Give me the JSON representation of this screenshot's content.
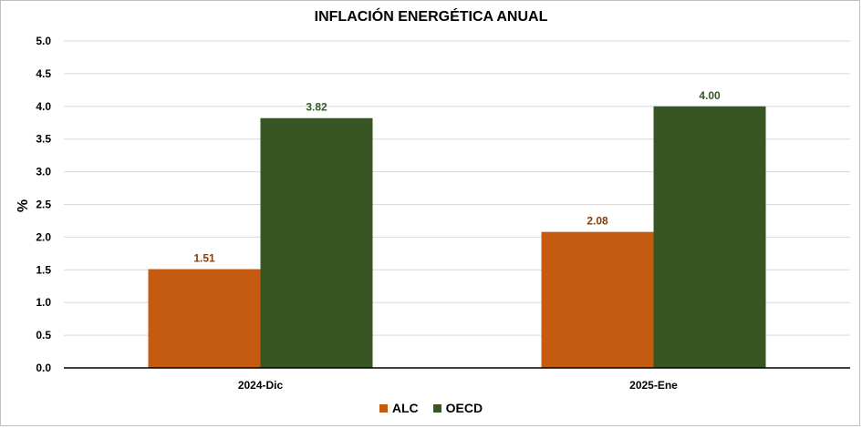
{
  "chart_data": {
    "type": "bar",
    "title": "INFLACIÓN ENERGÉTICA ANUAL",
    "ylabel": "%",
    "xlabel": "",
    "categories": [
      "2024-Dic",
      "2025-Ene"
    ],
    "series": [
      {
        "name": "ALC",
        "values": [
          1.51,
          2.08
        ],
        "labels": [
          "1.51",
          "2.08"
        ],
        "color": "#c55a11"
      },
      {
        "name": "OECD",
        "values": [
          3.82,
          4.0
        ],
        "labels": [
          "3.82",
          "4.00"
        ],
        "color": "#375623"
      }
    ],
    "ylim": [
      0,
      5
    ],
    "yticks": [
      "0.0",
      "0.5",
      "1.0",
      "1.5",
      "2.0",
      "2.5",
      "3.0",
      "3.5",
      "4.0",
      "4.5",
      "5.0"
    ],
    "grid": true,
    "legend_position": "bottom",
    "gridline_color": "#d9d9d9"
  }
}
